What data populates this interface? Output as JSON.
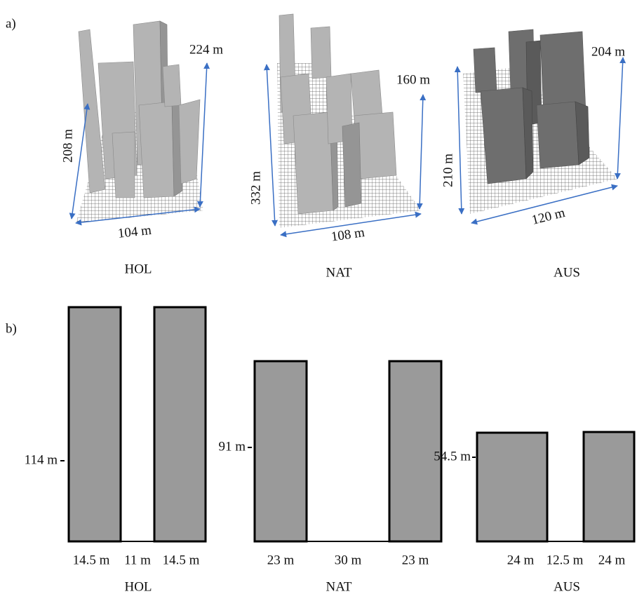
{
  "panel_a": {
    "label": "a)",
    "sites": [
      {
        "name": "HOL",
        "height": "224 m",
        "depth": "208 m",
        "width": "104 m"
      },
      {
        "name": "NAT",
        "height": "160 m",
        "depth": "332 m",
        "width": "108 m"
      },
      {
        "name": "AUS",
        "height": "204 m",
        "depth": "210 m",
        "width": "120 m"
      }
    ]
  },
  "panel_b": {
    "label": "b)",
    "sections": [
      {
        "name": "HOL",
        "height": "114 m",
        "widths": [
          "14.5 m",
          "11 m",
          "14.5 m"
        ]
      },
      {
        "name": "NAT",
        "height": "91 m",
        "widths": [
          "23 m",
          "30 m",
          "23 m"
        ]
      },
      {
        "name": "AUS",
        "height": "54.5 m",
        "widths": [
          "24 m",
          "12.5 m",
          "24 m"
        ]
      }
    ]
  }
}
